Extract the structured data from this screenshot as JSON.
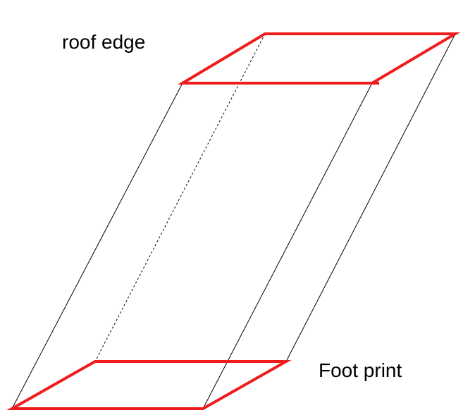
{
  "labels": {
    "roof": "roof edge",
    "foot": "Foot print"
  },
  "colors": {
    "edge_highlight": "#ee1c1c",
    "wire": "#000000",
    "background": "#ffffff"
  }
}
